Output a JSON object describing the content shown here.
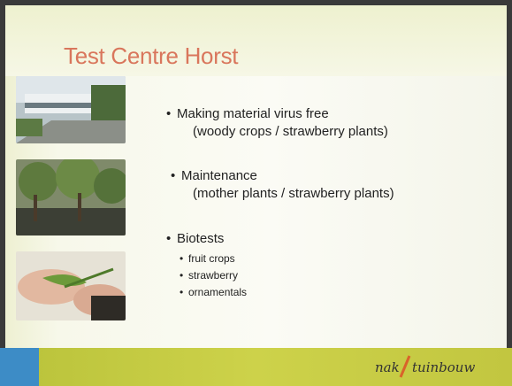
{
  "title": "Test Centre Horst",
  "bullets": [
    {
      "text": "Making material virus free",
      "detail": "(woody crops / strawberry plants)"
    },
    {
      "text": "Maintenance",
      "detail": "(mother plants / strawberry plants)"
    },
    {
      "text": "Biotests",
      "items": [
        "fruit crops",
        "strawberry",
        "ornamentals"
      ]
    }
  ],
  "logo": [
    "nak",
    "tuinbouw"
  ]
}
